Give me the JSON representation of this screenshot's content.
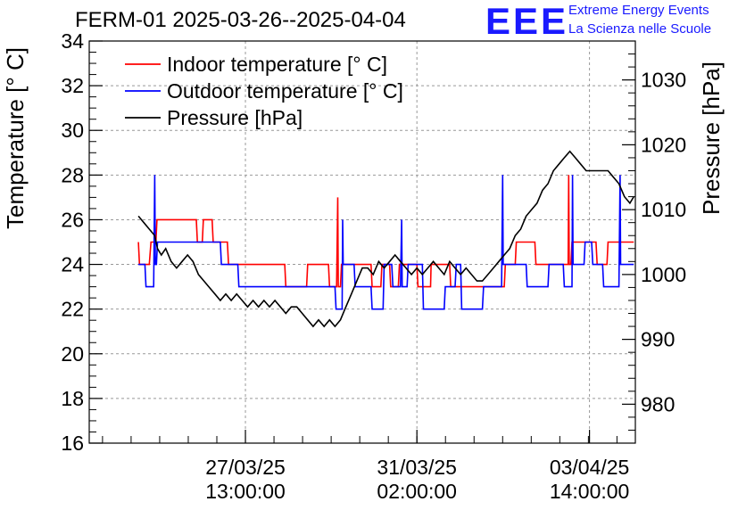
{
  "title": "FERM-01 2025-03-26--2025-04-04",
  "logo": {
    "mark": "EEE",
    "line1": "Extreme Energy Events",
    "line2": "La Scienza nelle Scuole",
    "color": "#1a1aff"
  },
  "chart_data": {
    "type": "line",
    "title": "FERM-01 2025-03-26--2025-04-04",
    "xlabel": "",
    "ylabel": "Temperature [° C]",
    "y2label": "Pressure [hPa]",
    "xlim": [
      0,
      100
    ],
    "ylim": [
      16,
      34
    ],
    "y2lim": [
      974,
      1036
    ],
    "grid": true,
    "legend_position": "top-left",
    "x_ticks": [
      {
        "x": 28.6,
        "line1": "27/03/25",
        "line2": "13:00:00"
      },
      {
        "x": 60.0,
        "line1": "31/03/25",
        "line2": "02:00:00"
      },
      {
        "x": 91.6,
        "line1": "03/04/25",
        "line2": "14:00:00"
      }
    ],
    "y_ticks": [
      16,
      18,
      20,
      22,
      24,
      26,
      28,
      30,
      32,
      34
    ],
    "y2_ticks": [
      980,
      990,
      1000,
      1010,
      1020,
      1030
    ],
    "series": [
      {
        "name": "Indoor temperature [° C]",
        "axis": "left",
        "color": "#ff0000",
        "step": true,
        "points": [
          [
            9,
            25
          ],
          [
            9.2,
            24
          ],
          [
            11,
            24
          ],
          [
            11.3,
            25
          ],
          [
            12.2,
            25
          ],
          [
            12.4,
            26
          ],
          [
            19.6,
            26
          ],
          [
            19.8,
            25
          ],
          [
            20.7,
            25
          ],
          [
            20.9,
            26
          ],
          [
            22.5,
            26
          ],
          [
            22.7,
            25
          ],
          [
            25.3,
            25
          ],
          [
            25.5,
            24
          ],
          [
            35.8,
            24
          ],
          [
            36,
            23
          ],
          [
            39.8,
            23
          ],
          [
            40,
            24
          ],
          [
            43.8,
            24
          ],
          [
            44,
            23
          ],
          [
            45.3,
            23
          ],
          [
            45.5,
            27
          ],
          [
            45.6,
            23
          ],
          [
            46,
            23
          ],
          [
            46.2,
            24
          ],
          [
            51.6,
            24
          ],
          [
            51.8,
            23
          ],
          [
            53.4,
            23
          ],
          [
            53.6,
            24
          ],
          [
            55,
            24
          ],
          [
            55.2,
            23
          ],
          [
            56.6,
            23
          ],
          [
            56.8,
            24
          ],
          [
            60,
            24
          ],
          [
            60.2,
            23
          ],
          [
            62.5,
            23
          ],
          [
            62.6,
            24
          ],
          [
            66,
            24
          ],
          [
            66.2,
            23
          ],
          [
            76,
            23
          ],
          [
            76.2,
            24
          ],
          [
            78,
            24
          ],
          [
            78.2,
            25
          ],
          [
            81.6,
            25
          ],
          [
            81.8,
            24
          ],
          [
            87.7,
            24
          ],
          [
            87.8,
            28
          ],
          [
            87.9,
            24
          ],
          [
            88.2,
            24
          ],
          [
            88.4,
            25
          ],
          [
            92.8,
            25
          ],
          [
            93,
            24
          ],
          [
            94.8,
            24
          ],
          [
            95,
            25
          ],
          [
            99.7,
            25
          ]
        ]
      },
      {
        "name": "Outdoor temperature [° C]",
        "axis": "left",
        "color": "#0000ff",
        "step": true,
        "points": [
          [
            9,
            24
          ],
          [
            10.2,
            24
          ],
          [
            10.4,
            23
          ],
          [
            11.8,
            23
          ],
          [
            12,
            28
          ],
          [
            12.1,
            24
          ],
          [
            12.3,
            24
          ],
          [
            12.5,
            25
          ],
          [
            24,
            25
          ],
          [
            24.2,
            24
          ],
          [
            27.2,
            24
          ],
          [
            27.4,
            23
          ],
          [
            34,
            23
          ],
          [
            34.2,
            23
          ],
          [
            40,
            23
          ],
          [
            40.2,
            23
          ],
          [
            45,
            23
          ],
          [
            45.2,
            22
          ],
          [
            46.3,
            22
          ],
          [
            46.4,
            26
          ],
          [
            46.5,
            24
          ],
          [
            48.5,
            24
          ],
          [
            48.7,
            23
          ],
          [
            51.6,
            23
          ],
          [
            51.8,
            22
          ],
          [
            53.8,
            22
          ],
          [
            54,
            24
          ],
          [
            55.4,
            24
          ],
          [
            55.6,
            23
          ],
          [
            57,
            23
          ],
          [
            57.2,
            26
          ],
          [
            57.3,
            23
          ],
          [
            58.2,
            23
          ],
          [
            58.4,
            24
          ],
          [
            61,
            24
          ],
          [
            61.2,
            22
          ],
          [
            65,
            22
          ],
          [
            65.2,
            23
          ],
          [
            67,
            23
          ],
          [
            67.2,
            24
          ],
          [
            68,
            24
          ],
          [
            68.2,
            22
          ],
          [
            72,
            22
          ],
          [
            72.2,
            23
          ],
          [
            75.5,
            23
          ],
          [
            75.7,
            28
          ],
          [
            75.8,
            24
          ],
          [
            80,
            24
          ],
          [
            80.2,
            23
          ],
          [
            84,
            23
          ],
          [
            84.2,
            24
          ],
          [
            86.8,
            24
          ],
          [
            87,
            23
          ],
          [
            88.4,
            23
          ],
          [
            88.5,
            28
          ],
          [
            88.6,
            24
          ],
          [
            90.6,
            24
          ],
          [
            90.8,
            25
          ],
          [
            92,
            25
          ],
          [
            92.2,
            24
          ],
          [
            94,
            24
          ],
          [
            94.2,
            23
          ],
          [
            97,
            23
          ],
          [
            97.2,
            28
          ],
          [
            97.3,
            24
          ],
          [
            99.7,
            24
          ]
        ]
      },
      {
        "name": "Pressure [hPa]",
        "axis": "right",
        "color": "#000000",
        "step": false,
        "points": [
          [
            9,
            1009
          ],
          [
            10,
            1008
          ],
          [
            11,
            1007
          ],
          [
            12,
            1006
          ],
          [
            12.5,
            1004
          ],
          [
            13.2,
            1003
          ],
          [
            14,
            1004
          ],
          [
            15,
            1002
          ],
          [
            16,
            1001
          ],
          [
            17,
            1002
          ],
          [
            18,
            1003
          ],
          [
            19,
            1002
          ],
          [
            20,
            1000
          ],
          [
            21,
            999
          ],
          [
            22,
            998
          ],
          [
            23,
            997
          ],
          [
            24,
            996
          ],
          [
            25,
            997
          ],
          [
            26,
            996
          ],
          [
            27,
            997
          ],
          [
            28,
            996
          ],
          [
            29,
            995
          ],
          [
            30,
            996
          ],
          [
            31,
            995
          ],
          [
            32,
            996
          ],
          [
            33,
            995
          ],
          [
            34,
            996
          ],
          [
            35,
            995
          ],
          [
            36,
            994
          ],
          [
            37,
            995
          ],
          [
            38,
            995
          ],
          [
            39,
            994
          ],
          [
            40,
            993
          ],
          [
            41,
            992
          ],
          [
            42,
            993
          ],
          [
            43,
            992
          ],
          [
            44,
            993
          ],
          [
            45,
            992
          ],
          [
            46,
            993
          ],
          [
            47,
            995
          ],
          [
            48,
            997
          ],
          [
            49,
            999
          ],
          [
            50,
            1001
          ],
          [
            51,
            1001
          ],
          [
            52,
            1000
          ],
          [
            53,
            1002
          ],
          [
            54,
            1001
          ],
          [
            55,
            1002
          ],
          [
            56,
            1003
          ],
          [
            57,
            1002
          ],
          [
            58,
            1001
          ],
          [
            59,
            1000
          ],
          [
            60,
            1001
          ],
          [
            61,
            1000
          ],
          [
            62,
            1001
          ],
          [
            63,
            1002
          ],
          [
            64,
            1001
          ],
          [
            65,
            1000
          ],
          [
            66,
            1002
          ],
          [
            67,
            1001
          ],
          [
            68,
            1000
          ],
          [
            69,
            1001
          ],
          [
            70,
            1000
          ],
          [
            71,
            999
          ],
          [
            72,
            999
          ],
          [
            73,
            1000
          ],
          [
            74,
            1001
          ],
          [
            75,
            1002
          ],
          [
            76,
            1003
          ],
          [
            77,
            1004
          ],
          [
            78,
            1006
          ],
          [
            79,
            1007
          ],
          [
            80,
            1009
          ],
          [
            81,
            1010
          ],
          [
            82,
            1011
          ],
          [
            83,
            1013
          ],
          [
            84,
            1014
          ],
          [
            85,
            1016
          ],
          [
            86,
            1017
          ],
          [
            87,
            1018
          ],
          [
            88,
            1019
          ],
          [
            89,
            1018
          ],
          [
            90,
            1017
          ],
          [
            91,
            1016
          ],
          [
            92,
            1016
          ],
          [
            93,
            1016
          ],
          [
            94,
            1016
          ],
          [
            95,
            1016
          ],
          [
            96,
            1015
          ],
          [
            97,
            1014
          ],
          [
            98,
            1012
          ],
          [
            99,
            1011
          ],
          [
            99.7,
            1012
          ]
        ]
      }
    ]
  }
}
